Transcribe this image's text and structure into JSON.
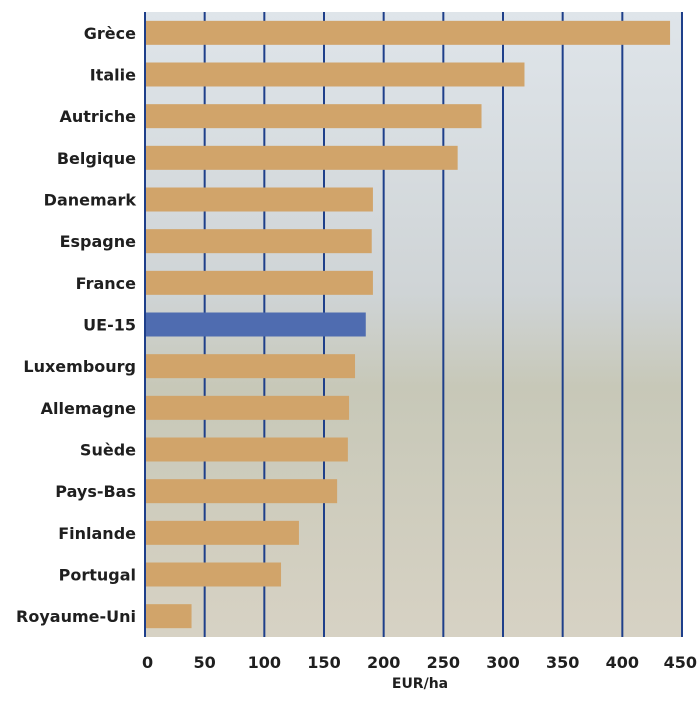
{
  "chart_data": {
    "type": "bar",
    "orientation": "horizontal",
    "categories": [
      "Grèce",
      "Italie",
      "Autriche",
      "Belgique",
      "Danemark",
      "Espagne",
      "France",
      "UE-15",
      "Luxembourg",
      "Allemagne",
      "Suède",
      "Pays-Bas",
      "Finlande",
      "Portugal",
      "Royaume-Uni"
    ],
    "values": [
      440,
      318,
      282,
      262,
      191,
      190,
      191,
      185,
      176,
      171,
      170,
      161,
      129,
      114,
      39
    ],
    "highlight_category": "UE-15",
    "xlabel": "EUR/ha",
    "ylabel": "",
    "title": "",
    "xlim": [
      0,
      450
    ],
    "xticks": [
      0,
      50,
      100,
      150,
      200,
      250,
      300,
      350,
      400,
      450
    ],
    "grid": "vertical",
    "legend": "none"
  },
  "colors": {
    "bar": "#d1a46a",
    "highlight_bar": "#4f6cb0",
    "grid": "#1e3f8a",
    "plot_background": "#c9ced3"
  }
}
